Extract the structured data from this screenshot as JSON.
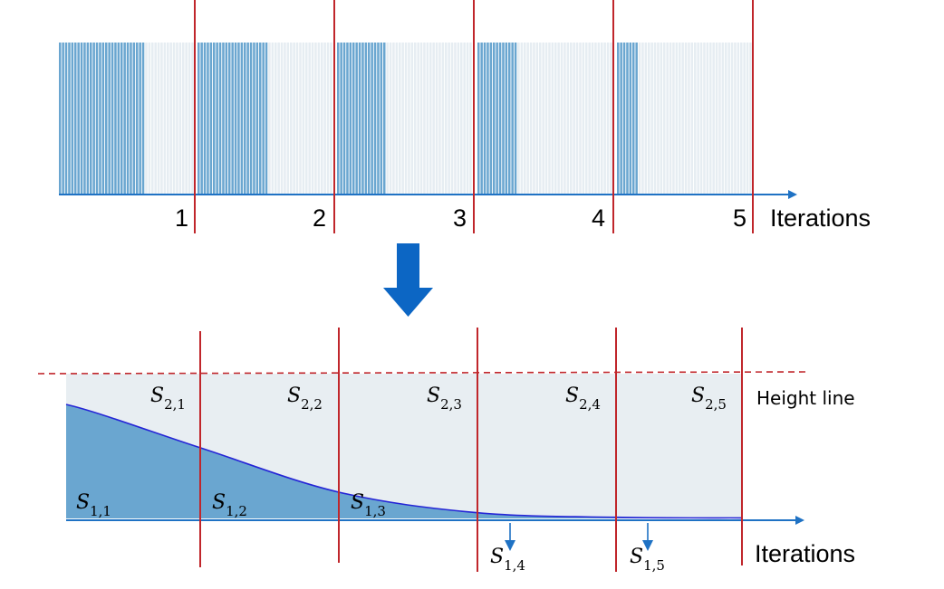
{
  "top_panel": {
    "tick_labels": [
      "1",
      "2",
      "3",
      "4",
      "5"
    ],
    "axis_label": "Iterations",
    "iterations": [
      {
        "index": 1,
        "active_fraction": 0.63
      },
      {
        "index": 2,
        "active_fraction": 0.5
      },
      {
        "index": 3,
        "active_fraction": 0.35
      },
      {
        "index": 4,
        "active_fraction": 0.29
      },
      {
        "index": 5,
        "active_fraction": 0.15
      }
    ]
  },
  "bottom_panel": {
    "height_line_label": "Height line",
    "axis_label": "Iterations",
    "curve_values": [
      1.0,
      0.62,
      0.23,
      0.05,
      0.01,
      0.005
    ],
    "upper_labels": [
      {
        "main": "S",
        "sub": "2,1"
      },
      {
        "main": "S",
        "sub": "2,2"
      },
      {
        "main": "S",
        "sub": "2,3"
      },
      {
        "main": "S",
        "sub": "2,4"
      },
      {
        "main": "S",
        "sub": "2,5"
      }
    ],
    "lower_labels": [
      {
        "main": "S",
        "sub": "1,1"
      },
      {
        "main": "S",
        "sub": "1,2"
      },
      {
        "main": "S",
        "sub": "1,3"
      },
      {
        "main": "S",
        "sub": "1,4"
      },
      {
        "main": "S",
        "sub": "1,5"
      }
    ]
  },
  "colors": {
    "active_bar": "#6aa6d0",
    "inactive_bar": "#e6edf2",
    "axis": "#1f72c4",
    "divider": "#c0262b",
    "curve": "#2525d6",
    "area_fill": "#6aa6d0",
    "background_fill": "#e8eef2",
    "big_arrow": "#0c66c4"
  }
}
